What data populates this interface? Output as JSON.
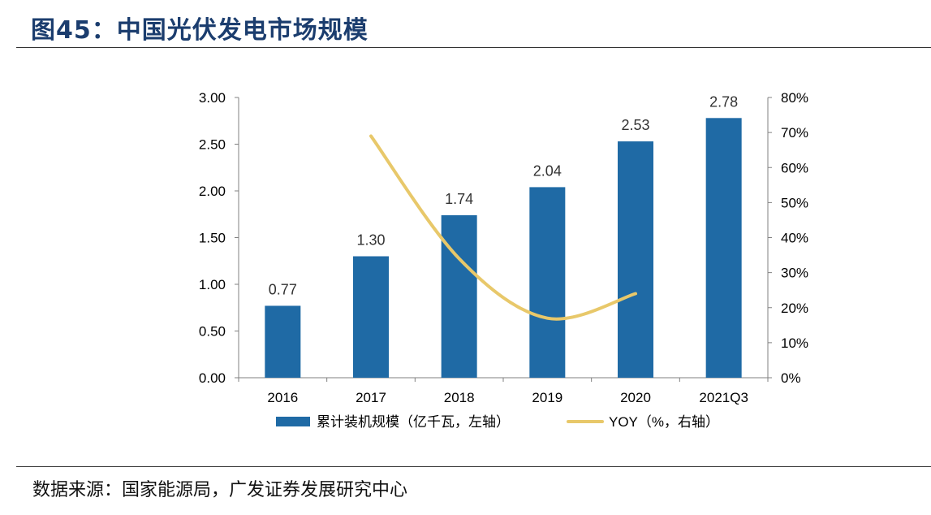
{
  "header": {
    "title": "图45：中国光伏发电市场规模"
  },
  "footer": {
    "source": "数据来源：国家能源局，广发证券发展研究中心"
  },
  "colors": {
    "bar": "#1f6aa5",
    "line": "#e8c86a",
    "title": "#1b3d6e"
  },
  "chart_data": {
    "type": "bar",
    "categories": [
      "2016",
      "2017",
      "2018",
      "2019",
      "2020",
      "2021Q3"
    ],
    "series": [
      {
        "name": "累计装机规模（亿千瓦，左轴）",
        "type": "bar",
        "axis": "left",
        "values": [
          0.77,
          1.3,
          1.74,
          2.04,
          2.53,
          2.78
        ],
        "labels": [
          "0.77",
          "1.30",
          "1.74",
          "2.04",
          "2.53",
          "2.78"
        ]
      },
      {
        "name": "YOY（%，右轴）",
        "type": "line",
        "axis": "right",
        "values": [
          null,
          69,
          34,
          17,
          24,
          null
        ]
      }
    ],
    "y_left": {
      "min": 0,
      "max": 3,
      "ticks": [
        "0.00",
        "0.50",
        "1.00",
        "1.50",
        "2.00",
        "2.50",
        "3.00"
      ]
    },
    "y_right": {
      "min": 0,
      "max": 80,
      "ticks": [
        "0%",
        "10%",
        "20%",
        "30%",
        "40%",
        "50%",
        "60%",
        "70%",
        "80%"
      ]
    },
    "legend": "bottom",
    "grid": false
  }
}
